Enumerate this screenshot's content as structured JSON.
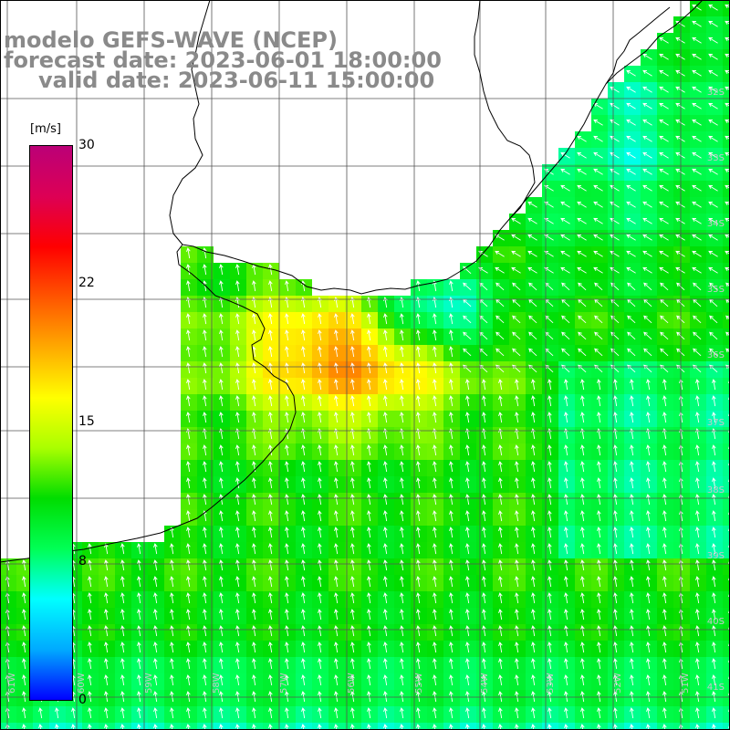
{
  "title": {
    "line1": "modelo GEFS-WAVE (NCEP)",
    "line2": "forecast date: 2023-06-01 18:00:00",
    "line3": "valid date: 2023-06-11 15:00:00"
  },
  "colorbar": {
    "unit": "[m/s]",
    "ticks": [
      "30",
      "22",
      "15",
      "8",
      "0"
    ],
    "min": 0,
    "max": 30,
    "stops": [
      "#0000ff",
      "#00aaff",
      "#00ffff",
      "#00ff55",
      "#00dd00",
      "#aaff00",
      "#ffff00",
      "#ffaa00",
      "#ff5500",
      "#ff0000",
      "#dd0055",
      "#bb0077"
    ]
  },
  "map": {
    "lat_labels": [
      "32S",
      "33S",
      "34S",
      "35S",
      "36S",
      "37S",
      "38S",
      "39S",
      "40S",
      "41S"
    ],
    "lon_labels": [
      "61W",
      "60W",
      "59W",
      "58W",
      "57W",
      "56W",
      "55W",
      "54W",
      "53W",
      "52W",
      "51W"
    ],
    "colors": {
      "land": "#ffffff",
      "coastline": "#000000",
      "grid": "#555555",
      "arrows": "#ffffff"
    }
  }
}
